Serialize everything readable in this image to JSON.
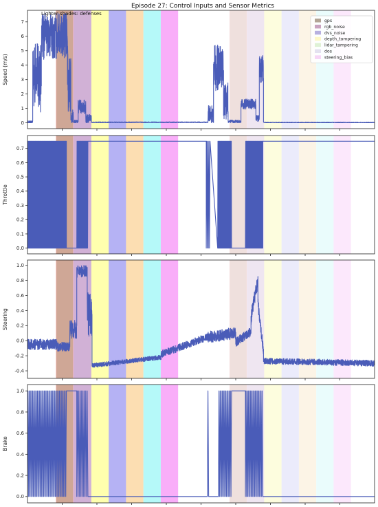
{
  "chart_data": {
    "type": "line",
    "title": "Episode 27: Control Inputs and Sensor Metrics",
    "annotation": "Lighter shades: defenses",
    "line_color": "#4a5cb8",
    "x_range": [
      0,
      100
    ],
    "legend": {
      "placement": "top-right",
      "entries": [
        {
          "name": "gps",
          "color": "#b3a596"
        },
        {
          "name": "rgb_noise",
          "color": "#c9a3c0"
        },
        {
          "name": "dvs_noise",
          "color": "#b7b0e0"
        },
        {
          "name": "depth_tampering",
          "color": "#fdf8c8"
        },
        {
          "name": "lidar_tampering",
          "color": "#dff2d6"
        },
        {
          "name": "dos",
          "color": "#e4e2f0"
        },
        {
          "name": "steering_bias",
          "color": "#f6d6f6"
        }
      ]
    },
    "bands": [
      {
        "x0": 8.2,
        "x1": 13.2,
        "color": "#ff9898",
        "defense": false
      },
      {
        "x0": 13.2,
        "x1": 18.4,
        "color": "#c9a3cf",
        "defense": false
      },
      {
        "x0": 18.4,
        "x1": 23.4,
        "color": "#ffffa0",
        "defense": false
      },
      {
        "x0": 23.4,
        "x1": 28.4,
        "color": "#a8a4f2",
        "defense": false
      },
      {
        "x0": 28.4,
        "x1": 33.4,
        "color": "#fcd8a4",
        "defense": false
      },
      {
        "x0": 33.4,
        "x1": 38.4,
        "color": "#a8f8f8",
        "defense": false
      },
      {
        "x0": 38.4,
        "x1": 43.4,
        "color": "#f8a0f8",
        "defense": false
      },
      {
        "x0": 58.2,
        "x1": 63.2,
        "color": "#f9dcdc",
        "defense": true
      },
      {
        "x0": 63.2,
        "x1": 68.2,
        "color": "#ece2ee",
        "defense": true
      },
      {
        "x0": 68.2,
        "x1": 73.2,
        "color": "#fdfdd8",
        "defense": true
      },
      {
        "x0": 73.2,
        "x1": 78.2,
        "color": "#e8e8fa",
        "defense": true
      },
      {
        "x0": 78.2,
        "x1": 83.2,
        "color": "#fcf2e2",
        "defense": true
      },
      {
        "x0": 83.2,
        "x1": 88.2,
        "color": "#e6fcfc",
        "defense": true
      },
      {
        "x0": 88.2,
        "x1": 93.2,
        "color": "#fbe4fb",
        "defense": true
      }
    ],
    "gps_overlay": [
      {
        "x0": 8.2,
        "x1": 13.2,
        "color": "#a8a888"
      },
      {
        "x0": 58.2,
        "x1": 63.2,
        "color": "#e6e0da"
      }
    ],
    "panels": [
      {
        "id": "speed",
        "ylabel": "Speed (m/s)",
        "ylim": [
          -0.4,
          7.8
        ],
        "yticks": [
          0,
          1,
          2,
          3,
          4,
          5,
          6,
          7
        ],
        "segments": [
          {
            "kind": "noise",
            "x0": 0,
            "x1": 1.5,
            "base": 0.05,
            "amp": 0.1
          },
          {
            "kind": "noise",
            "x0": 1.5,
            "x1": 4.0,
            "base": 3.0,
            "amp": 2.5
          },
          {
            "kind": "noise",
            "x0": 4.0,
            "x1": 11.5,
            "base": 6.0,
            "amp": 1.6
          },
          {
            "kind": "noise",
            "x0": 11.5,
            "x1": 12.5,
            "base": 3.0,
            "amp": 2.5
          },
          {
            "kind": "noise",
            "x0": 12.5,
            "x1": 13.2,
            "base": 0.4,
            "amp": 0.5
          },
          {
            "kind": "noise",
            "x0": 13.2,
            "x1": 14.6,
            "base": 0.1,
            "amp": 0.1
          },
          {
            "kind": "noise",
            "x0": 14.6,
            "x1": 16.8,
            "base": 1.1,
            "amp": 0.5
          },
          {
            "kind": "noise",
            "x0": 16.8,
            "x1": 18.4,
            "base": 0.3,
            "amp": 0.3
          },
          {
            "kind": "noise",
            "x0": 18.4,
            "x1": 52.0,
            "base": 0.04,
            "amp": 0.03
          },
          {
            "kind": "noise",
            "x0": 52.0,
            "x1": 53.6,
            "base": 0.6,
            "amp": 0.6
          },
          {
            "kind": "noise",
            "x0": 53.6,
            "x1": 56.5,
            "base": 3.8,
            "amp": 1.6
          },
          {
            "kind": "noise",
            "x0": 56.5,
            "x1": 57.8,
            "base": 1.5,
            "amp": 1.3
          },
          {
            "kind": "noise",
            "x0": 57.8,
            "x1": 61.5,
            "base": 0.1,
            "amp": 0.1
          },
          {
            "kind": "noise",
            "x0": 61.5,
            "x1": 65.8,
            "base": 1.3,
            "amp": 0.35
          },
          {
            "kind": "noise",
            "x0": 65.8,
            "x1": 66.8,
            "base": 0.3,
            "amp": 0.25
          },
          {
            "kind": "noise",
            "x0": 66.8,
            "x1": 68.0,
            "base": 3.8,
            "amp": 1.0
          },
          {
            "kind": "noise",
            "x0": 68.0,
            "x1": 100,
            "base": 0.03,
            "amp": 0.03
          }
        ]
      },
      {
        "id": "throttle",
        "ylabel": "Throttle",
        "ylim": [
          -0.04,
          0.79
        ],
        "yticks": [
          0.0,
          0.1,
          0.2,
          0.3,
          0.4,
          0.5,
          0.6,
          0.7
        ],
        "ytick_format": 1,
        "segments": [
          {
            "kind": "binary",
            "x0": 0,
            "x1": 11.2,
            "lo": 0.0,
            "hi": 0.75,
            "density": 14
          },
          {
            "kind": "flat",
            "x0": 11.2,
            "x1": 14.2,
            "y": 0.0
          },
          {
            "kind": "binary",
            "x0": 14.2,
            "x1": 17.4,
            "lo": 0.0,
            "hi": 0.75,
            "density": 14
          },
          {
            "kind": "flat",
            "x0": 17.4,
            "x1": 51.5,
            "y": 0.75
          },
          {
            "kind": "binary",
            "x0": 51.5,
            "x1": 52.6,
            "lo": 0.0,
            "hi": 0.75,
            "density": 6
          },
          {
            "kind": "binary",
            "x0": 54.8,
            "x1": 58.8,
            "lo": 0.0,
            "hi": 0.75,
            "density": 14
          },
          {
            "kind": "flat",
            "x0": 58.8,
            "x1": 62.8,
            "y": 0.0
          },
          {
            "kind": "binary",
            "x0": 62.8,
            "x1": 67.8,
            "lo": 0.0,
            "hi": 0.75,
            "density": 14
          },
          {
            "kind": "flat",
            "x0": 67.8,
            "x1": 100,
            "y": 0.75
          }
        ]
      },
      {
        "id": "steering",
        "ylabel": "Steering",
        "ylim": [
          -0.5,
          1.07
        ],
        "yticks": [
          -0.4,
          -0.2,
          0.0,
          0.2,
          0.4,
          0.6,
          0.8,
          1.0
        ],
        "ytick_format": 1,
        "segments": [
          {
            "kind": "noise",
            "x0": 0,
            "x1": 8.5,
            "base": -0.05,
            "amp": 0.07
          },
          {
            "kind": "noise",
            "x0": 8.5,
            "x1": 12.2,
            "base": -0.08,
            "amp": 0.06
          },
          {
            "kind": "noise",
            "x0": 12.2,
            "x1": 14.2,
            "base": 0.15,
            "amp": 0.12
          },
          {
            "kind": "noise",
            "x0": 14.2,
            "x1": 17.2,
            "base": 0.92,
            "amp": 0.08
          },
          {
            "kind": "noise",
            "x0": 17.2,
            "x1": 18.6,
            "base": 0.35,
            "amp": 0.3
          },
          {
            "kind": "ramp",
            "x0": 18.6,
            "x1": 38.5,
            "y0": -0.33,
            "y1": -0.22,
            "amp": 0.03
          },
          {
            "kind": "ramp",
            "x0": 38.5,
            "x1": 52.0,
            "y0": -0.18,
            "y1": 0.05,
            "amp": 0.05
          },
          {
            "kind": "ramp",
            "x0": 52.0,
            "x1": 60.0,
            "y0": 0.05,
            "y1": 0.1,
            "amp": 0.08
          },
          {
            "kind": "ramp",
            "x0": 60.0,
            "x1": 64.4,
            "y0": -0.02,
            "y1": 0.12,
            "amp": 0.06
          },
          {
            "kind": "ramp",
            "x0": 64.4,
            "x1": 66.4,
            "y0": 0.3,
            "y1": 0.82,
            "amp": 0.1
          },
          {
            "kind": "ramp",
            "x0": 66.4,
            "x1": 68.0,
            "y0": 0.5,
            "y1": -0.15,
            "amp": 0.08
          },
          {
            "kind": "ramp",
            "x0": 68.0,
            "x1": 100,
            "y0": -0.27,
            "y1": -0.3,
            "amp": 0.04
          }
        ]
      },
      {
        "id": "brake",
        "ylabel": "Brake",
        "ylim": [
          -0.06,
          1.06
        ],
        "yticks": [
          0.0,
          0.2,
          0.4,
          0.6,
          0.8,
          1.0
        ],
        "ytick_format": 1,
        "segments": [
          {
            "kind": "binary",
            "x0": 0,
            "x1": 11.2,
            "lo": 0.0,
            "hi": 1.0,
            "density": 6
          },
          {
            "kind": "flat",
            "x0": 11.2,
            "x1": 14.2,
            "y": 1.0
          },
          {
            "kind": "binary",
            "x0": 14.2,
            "x1": 17.4,
            "lo": 0.0,
            "hi": 1.0,
            "density": 5
          },
          {
            "kind": "flat",
            "x0": 17.4,
            "x1": 51.8,
            "y": 0.0
          },
          {
            "kind": "binary",
            "x0": 51.8,
            "x1": 52.2,
            "lo": 0.0,
            "hi": 1.0,
            "density": 3
          },
          {
            "kind": "binary",
            "x0": 55.0,
            "x1": 58.8,
            "lo": 0.0,
            "hi": 1.0,
            "density": 6
          },
          {
            "kind": "flat",
            "x0": 58.8,
            "x1": 62.8,
            "y": 1.0
          },
          {
            "kind": "binary",
            "x0": 62.8,
            "x1": 67.8,
            "lo": 0.0,
            "hi": 1.0,
            "density": 6
          },
          {
            "kind": "flat",
            "x0": 67.8,
            "x1": 100,
            "y": 0.0
          }
        ]
      }
    ]
  }
}
